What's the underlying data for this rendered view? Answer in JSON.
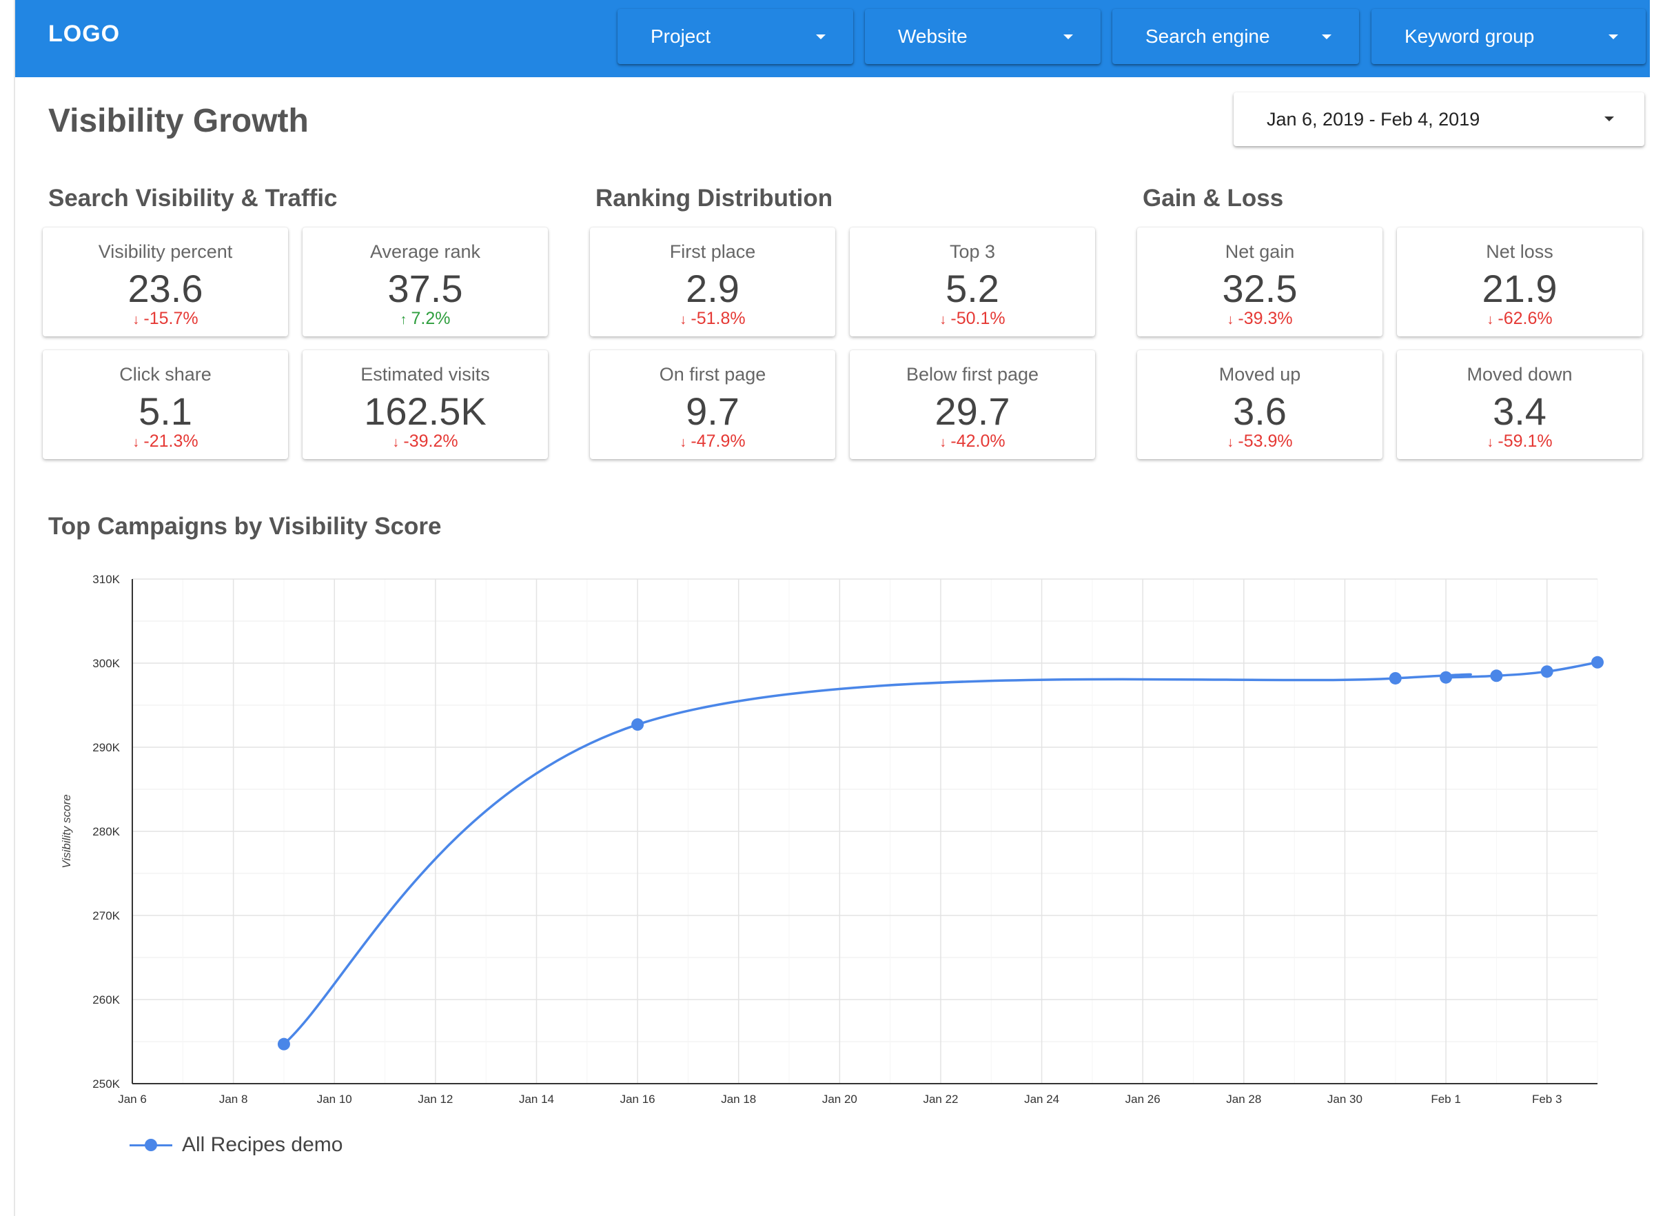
{
  "header": {
    "logo": "LOGO",
    "filters": [
      {
        "label": "Project"
      },
      {
        "label": "Website"
      },
      {
        "label": "Search engine"
      },
      {
        "label": "Keyword group"
      }
    ]
  },
  "page": {
    "title": "Visibility Growth",
    "date_range": "Jan 6, 2019 - Feb 4, 2019"
  },
  "sections": {
    "traffic": "Search Visibility & Traffic",
    "ranking": "Ranking Distribution",
    "gainloss": "Gain & Loss"
  },
  "cards": [
    {
      "label": "Visibility percent",
      "value": "23.6",
      "delta": "-15.7%",
      "direction": "down"
    },
    {
      "label": "Average rank",
      "value": "37.5",
      "delta": "7.2%",
      "direction": "up"
    },
    {
      "label": "First place",
      "value": "2.9",
      "delta": "-51.8%",
      "direction": "down"
    },
    {
      "label": "Top 3",
      "value": "5.2",
      "delta": "-50.1%",
      "direction": "down"
    },
    {
      "label": "Net gain",
      "value": "32.5",
      "delta": "-39.3%",
      "direction": "down"
    },
    {
      "label": "Net loss",
      "value": "21.9",
      "delta": "-62.6%",
      "direction": "down"
    },
    {
      "label": "Click share",
      "value": "5.1",
      "delta": "-21.3%",
      "direction": "down"
    },
    {
      "label": "Estimated visits",
      "value": "162.5K",
      "delta": "-39.2%",
      "direction": "down"
    },
    {
      "label": "On first page",
      "value": "9.7",
      "delta": "-47.9%",
      "direction": "down"
    },
    {
      "label": "Below first page",
      "value": "29.7",
      "delta": "-42.0%",
      "direction": "down"
    },
    {
      "label": "Moved up",
      "value": "3.6",
      "delta": "-53.9%",
      "direction": "down"
    },
    {
      "label": "Moved down",
      "value": "3.4",
      "delta": "-59.1%",
      "direction": "down"
    }
  ],
  "chart_title": "Top Campaigns by Visibility Score",
  "colors": {
    "header": "#2286e3",
    "series": "#4a86e8",
    "negative": "#e53935",
    "positive": "#2e9e3e"
  },
  "chart_data": {
    "type": "line",
    "title": "Top Campaigns by Visibility Score",
    "xlabel": "",
    "ylabel": "Visibility score",
    "x_tick_labels": [
      "Jan 6",
      "Jan 8",
      "Jan 10",
      "Jan 12",
      "Jan 14",
      "Jan 16",
      "Jan 18",
      "Jan 20",
      "Jan 22",
      "Jan 24",
      "Jan 26",
      "Jan 28",
      "Jan 30",
      "Feb 1",
      "Feb 3"
    ],
    "y_tick_labels": [
      "250K",
      "260K",
      "270K",
      "280K",
      "290K",
      "300K",
      "310K"
    ],
    "xlim": [
      "2019-01-06",
      "2019-02-04"
    ],
    "ylim": [
      250000,
      310000
    ],
    "grid": true,
    "legend": "bottom-left",
    "series": [
      {
        "name": "All Recipes demo",
        "color": "#4a86e8",
        "points": [
          {
            "x": "2019-01-09",
            "y": 254700
          },
          {
            "x": "2019-01-16",
            "y": 292700
          },
          {
            "x": "2019-01-31",
            "y": 298200
          },
          {
            "x": "2019-02-01",
            "y": 298300
          },
          {
            "x": "2019-02-02",
            "y": 298500
          },
          {
            "x": "2019-02-03",
            "y": 299000
          },
          {
            "x": "2019-02-04",
            "y": 300100
          }
        ]
      }
    ]
  }
}
